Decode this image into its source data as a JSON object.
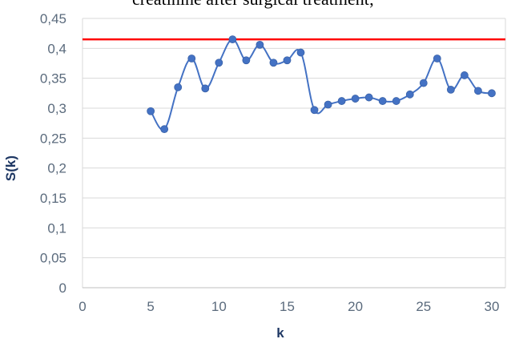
{
  "header_text": "creatinine after surgical treatment;",
  "chart_data": {
    "type": "scatter",
    "title": "",
    "xlabel": "k",
    "ylabel": "S(k)",
    "xlim": [
      0,
      31
    ],
    "ylim": [
      0,
      0.45
    ],
    "x_ticks": [
      0,
      5,
      10,
      15,
      20,
      25,
      30
    ],
    "x_tick_labels": [
      "0",
      "5",
      "10",
      "15",
      "20",
      "25",
      "30"
    ],
    "y_ticks": [
      0,
      0.05,
      0.1,
      0.15,
      0.2,
      0.25,
      0.3,
      0.35,
      0.4,
      0.45
    ],
    "y_tick_labels": [
      "0",
      "0,05",
      "0,1",
      "0,15",
      "0,2",
      "0,25",
      "0,3",
      "0,35",
      "0,4",
      "0,45"
    ],
    "grid": "horizontal",
    "legend": "none",
    "series": [
      {
        "style": "smoothed line with markers",
        "color": "#4472c4",
        "x": [
          5,
          6,
          7,
          8,
          9,
          10,
          11,
          12,
          13,
          14,
          15,
          16,
          17,
          18,
          19,
          20,
          21,
          22,
          23,
          24,
          25,
          26,
          27,
          28,
          29,
          30
        ],
        "y": [
          0.295,
          0.265,
          0.335,
          0.383,
          0.333,
          0.376,
          0.415,
          0.38,
          0.406,
          0.376,
          0.38,
          0.393,
          0.297,
          0.306,
          0.312,
          0.316,
          0.318,
          0.312,
          0.312,
          0.323,
          0.342,
          0.383,
          0.331,
          0.355,
          0.329,
          0.325
        ]
      }
    ],
    "reference_line": {
      "orientation": "horizontal",
      "y": 0.415,
      "color": "#ff0000"
    }
  }
}
